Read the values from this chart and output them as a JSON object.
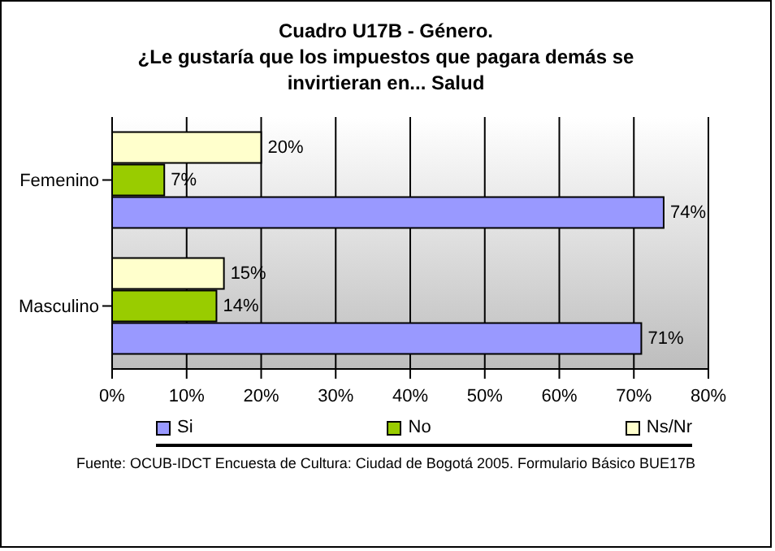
{
  "chart_data": {
    "type": "bar",
    "orientation": "horizontal",
    "title": "Cuadro U17B - Género.",
    "subtitle": "¿Le gustaría que los impuestos que pagara demás se invirtieran en... Salud",
    "categories": [
      "Femenino",
      "Masculino"
    ],
    "series": [
      {
        "name": "Si",
        "color": "#9999ff",
        "values": [
          74,
          71
        ],
        "value_labels": [
          "74%",
          "71%"
        ]
      },
      {
        "name": "No",
        "color": "#99cc00",
        "values": [
          7,
          14
        ],
        "value_labels": [
          "7%",
          "14%"
        ]
      },
      {
        "name": "Ns/Nr",
        "color": "#ffffcc",
        "values": [
          20,
          15
        ],
        "value_labels": [
          "20%",
          "15%"
        ]
      }
    ],
    "xlim": [
      0,
      80
    ],
    "xticks": [
      {
        "value": 0,
        "label": "0%"
      },
      {
        "value": 10,
        "label": "10%"
      },
      {
        "value": 20,
        "label": "20%"
      },
      {
        "value": 30,
        "label": "30%"
      },
      {
        "value": 40,
        "label": "40%"
      },
      {
        "value": 50,
        "label": "50%"
      },
      {
        "value": 60,
        "label": "60%"
      },
      {
        "value": 70,
        "label": "70%"
      },
      {
        "value": 80,
        "label": "80%"
      }
    ],
    "grid": "x",
    "legend": "bottom",
    "annotations": [
      "Fuente: OCUB-IDCT Encuesta de Cultura: Ciudad de Bogotá 2005. Formulario Básico BUE17B"
    ]
  }
}
